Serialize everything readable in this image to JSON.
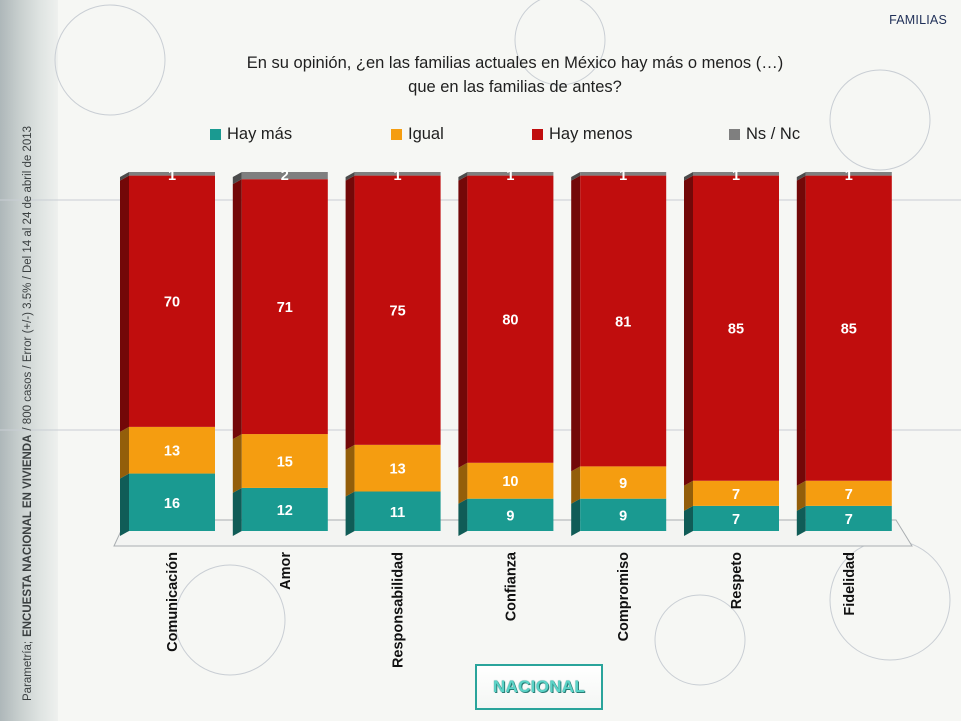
{
  "section_tag": "FAMILIAS",
  "title_line1": "En su opinión, ¿en las familias actuales en México hay más o menos (…)",
  "title_line2": "que en las familias de antes?",
  "side_note": {
    "prefix": "Parametría;",
    "survey": "ENCUESTA NACIONAL EN VIVIENDA",
    "details": "/ 800 casos / Error (+/-) 3.5% / Del 14 al 24 de abril de 2013"
  },
  "badge": "NACIONAL",
  "chart_data": {
    "type": "bar",
    "stacked": true,
    "categories": [
      "Comunicación",
      "Amor",
      "Responsabilidad",
      "Confianza",
      "Compromiso",
      "Respeto",
      "Fidelidad"
    ],
    "series": [
      {
        "name": "Hay más",
        "color": "#1a9a91",
        "values": [
          16,
          12,
          11,
          9,
          9,
          7,
          7
        ]
      },
      {
        "name": "Igual",
        "color": "#f59d10",
        "values": [
          13,
          15,
          13,
          10,
          9,
          7,
          7
        ]
      },
      {
        "name": "Hay menos",
        "color": "#c00d0d",
        "values": [
          70,
          71,
          75,
          80,
          81,
          85,
          85
        ]
      },
      {
        "name": "Ns / Nc",
        "color": "#7f7f7f",
        "values": [
          1,
          2,
          1,
          1,
          1,
          1,
          1
        ]
      }
    ],
    "ylim": [
      0,
      100
    ],
    "legend_position": "top",
    "grid": false
  }
}
